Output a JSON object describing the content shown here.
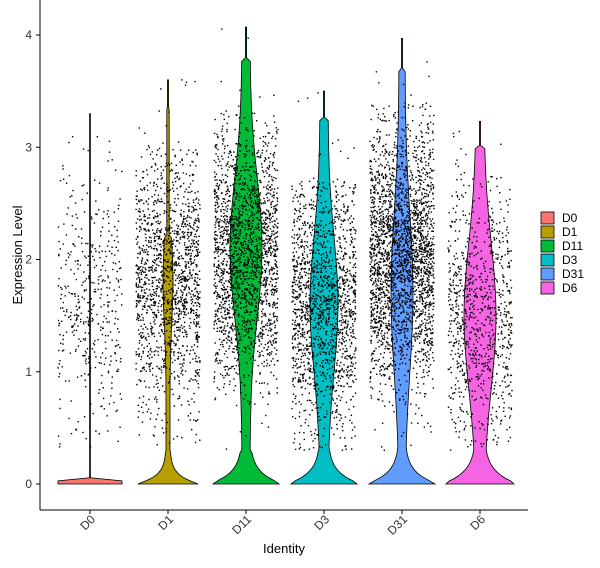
{
  "chart_data": {
    "type": "violin",
    "title": "",
    "xlabel": "Identity",
    "ylabel": "Expression Level",
    "ylim": [
      -0.2,
      4.15
    ],
    "yticks": [
      0,
      1,
      2,
      3,
      4
    ],
    "categories": [
      "D0",
      "D1",
      "D11",
      "D3",
      "D31",
      "D6"
    ],
    "series": [
      {
        "name": "D0",
        "color": "#F8766D",
        "max": 3.3,
        "points_median": 1.6,
        "spread_low": 0.3,
        "spread_high": 2.9,
        "density": "sparse"
      },
      {
        "name": "D1",
        "color": "#B79F00",
        "max": 3.6,
        "points_median": 1.8,
        "spread_low": 0.3,
        "spread_high": 3.0,
        "density": "dense"
      },
      {
        "name": "D11",
        "color": "#00BA38",
        "max": 4.07,
        "points_median": 2.0,
        "spread_low": 0.3,
        "spread_high": 3.3,
        "density": "dense"
      },
      {
        "name": "D3",
        "color": "#00BFC4",
        "max": 3.5,
        "points_median": 1.6,
        "spread_low": 0.3,
        "spread_high": 2.7,
        "density": "dense"
      },
      {
        "name": "D31",
        "color": "#619CFF",
        "max": 3.97,
        "points_median": 2.0,
        "spread_low": 0.3,
        "spread_high": 3.4,
        "density": "very dense"
      },
      {
        "name": "D6",
        "color": "#F564E3",
        "max": 3.23,
        "points_median": 1.5,
        "spread_low": 0.3,
        "spread_high": 2.9,
        "density": "medium"
      }
    ],
    "legend": {
      "position": "right",
      "entries": [
        "D0",
        "D1",
        "D11",
        "D3",
        "D31",
        "D6"
      ]
    },
    "grid": false
  }
}
